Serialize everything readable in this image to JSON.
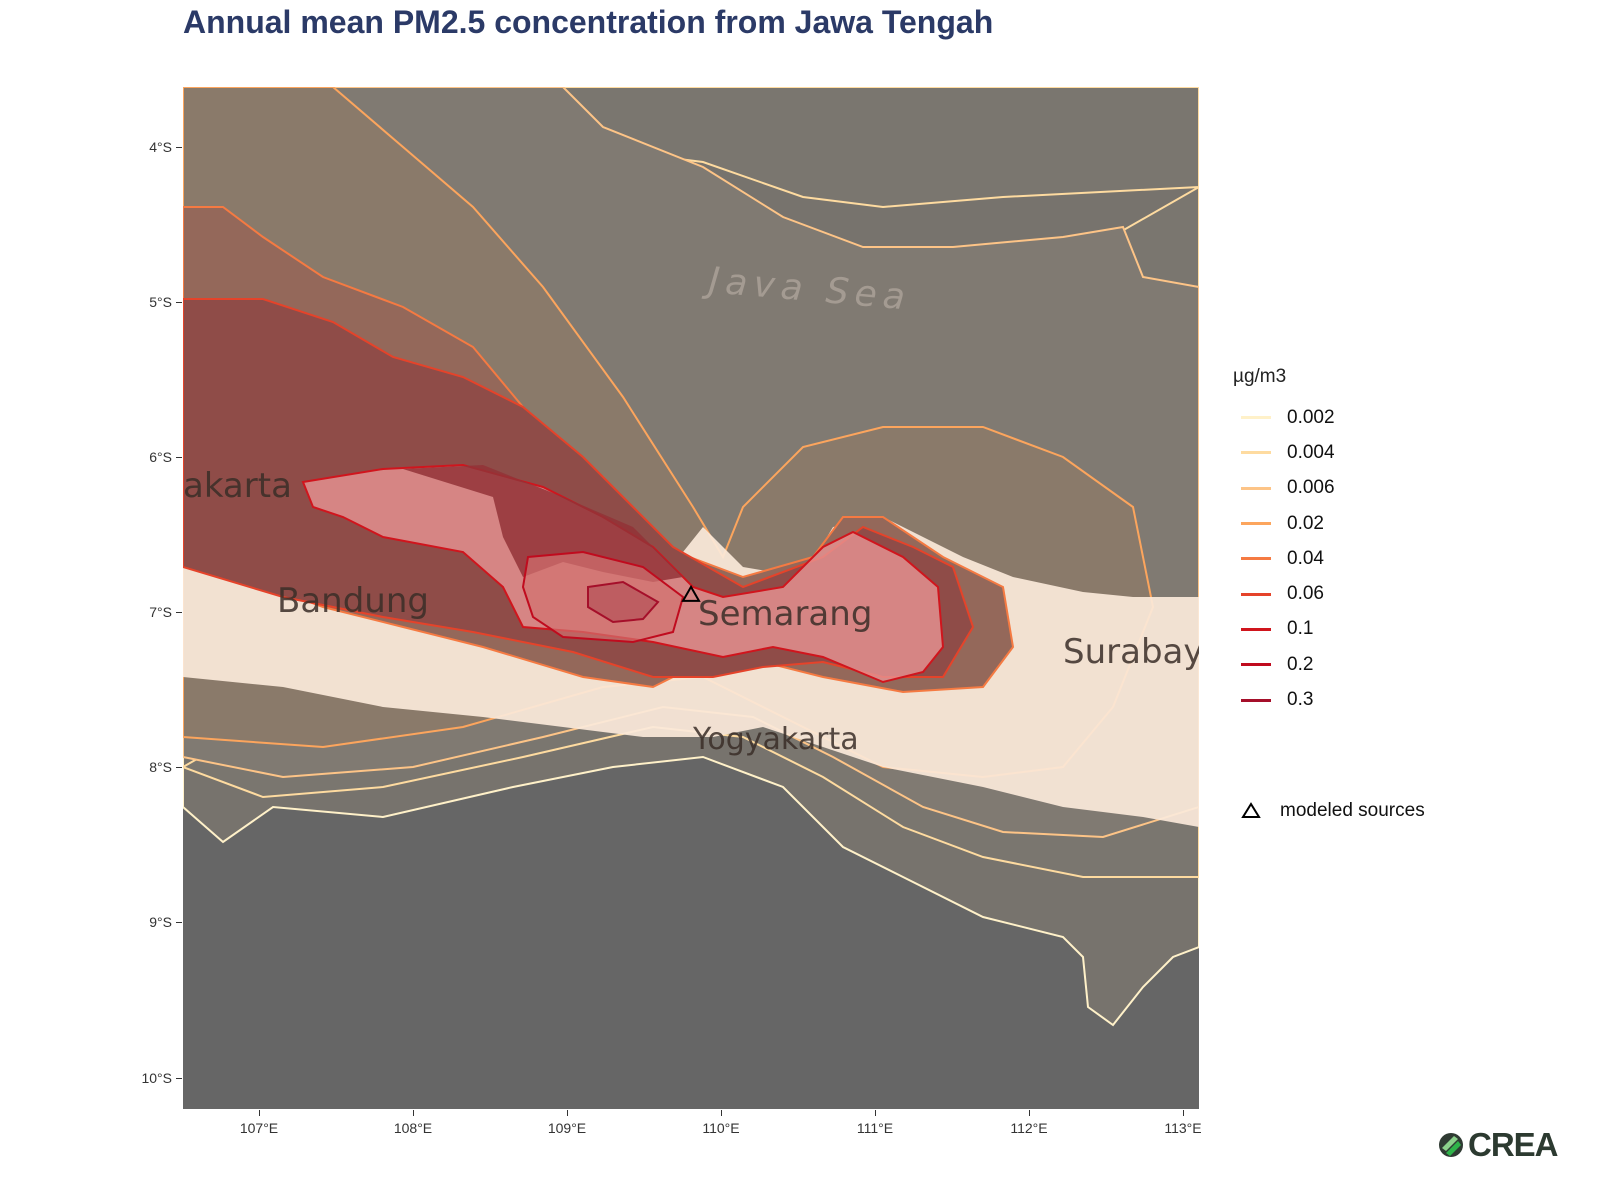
{
  "title": "Annual mean PM2.5 concentration from Jawa Tengah",
  "map": {
    "extent": {
      "lon": [
        106.5,
        113.1
      ],
      "lat": [
        -10.2,
        -3.6
      ]
    },
    "y_ticks": [
      "4°S",
      "5°S",
      "6°S",
      "7°S",
      "8°S",
      "9°S",
      "10°S"
    ],
    "x_ticks": [
      "107°E",
      "108°E",
      "109°E",
      "110°E",
      "111°E",
      "112°E",
      "113°E"
    ],
    "places": {
      "jakarta": "akarta",
      "bandung": "Bandung",
      "semarang": "Semarang",
      "surabaya": "Surabay",
      "yogyakarta": "Yogyakarta",
      "java_sea": "Java Sea"
    },
    "sources": [
      {
        "lon": 109.8,
        "lat": -6.88
      }
    ],
    "sea_color": "#666666",
    "land_color": "#f2f0ec"
  },
  "legend": {
    "title": "µg/m3",
    "levels": [
      {
        "label": "0.002",
        "color": "#fff1c9"
      },
      {
        "label": "0.004",
        "color": "#fedba0"
      },
      {
        "label": "0.006",
        "color": "#fdc487"
      },
      {
        "label": "0.02",
        "color": "#fca55d"
      },
      {
        "label": "0.04",
        "color": "#f57a42"
      },
      {
        "label": "0.06",
        "color": "#e5432a"
      },
      {
        "label": "0.1",
        "color": "#d0151d"
      },
      {
        "label": "0.2",
        "color": "#c00b1e"
      },
      {
        "label": "0.3",
        "color": "#a50f2a"
      }
    ],
    "source_label": "modeled sources",
    "source_icon": "triangle-outline-icon"
  },
  "logo": {
    "text": "CREA",
    "icon": "crea-logo-icon"
  }
}
